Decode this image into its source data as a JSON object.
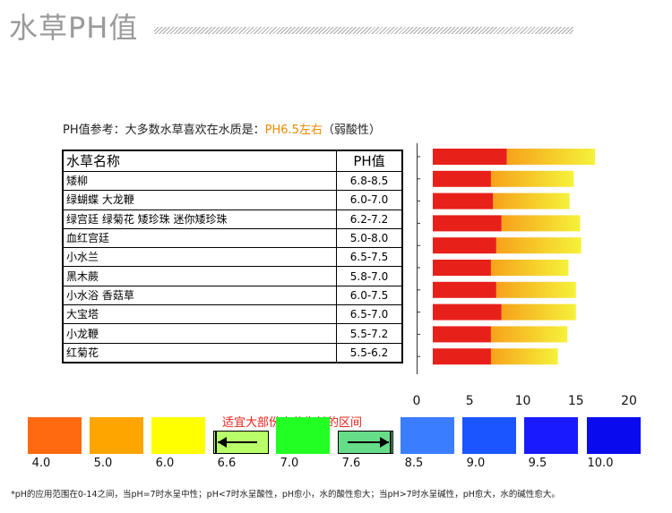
{
  "header": {
    "title": "水草PH值"
  },
  "intro": {
    "prefix": "PH值参考：大多数水草喜欢在水质是：",
    "highlight": "PH6.5左右",
    "suffix": "（弱酸性）"
  },
  "table": {
    "col_name": "水草名称",
    "col_ph": "PH值",
    "rows": [
      {
        "name": "矮柳",
        "ph": "6.8-8.5"
      },
      {
        "name": "绿蝴蝶 大龙鞭",
        "ph": "6.0-7.0"
      },
      {
        "name": "绿宫廷 绿菊花 矮珍珠 迷你矮珍珠",
        "ph": "6.2-7.2"
      },
      {
        "name": "血红宫廷",
        "ph": "5.0-8.0"
      },
      {
        "name": "小水兰",
        "ph": "6.5-7.5"
      },
      {
        "name": "黑木蕨",
        "ph": "5.8-7.0"
      },
      {
        "name": "小水浴 香菇草",
        "ph": "6.0-7.5"
      },
      {
        "name": "大宝塔",
        "ph": "6.5-7.0"
      },
      {
        "name": "小龙鞭",
        "ph": "5.5-7.2"
      },
      {
        "name": "红菊花",
        "ph": "5.5-6.2"
      }
    ]
  },
  "chart_data": {
    "type": "bar",
    "orientation": "horizontal",
    "stacked": true,
    "categories": [
      "矮柳",
      "绿蝴蝶 大龙鞭",
      "绿宫廷 绿菊花 矮珍珠 迷你矮珍珠",
      "血红宫廷",
      "小水兰",
      "黑木蕨",
      "小水浴 香菇草",
      "大宝塔",
      "小龙鞭",
      "红菊花"
    ],
    "series": [
      {
        "values": [
          8.5,
          7.0,
          7.2,
          8.0,
          7.5,
          7.0,
          7.5,
          8.0,
          7.0,
          7.0
        ]
      },
      {
        "values": [
          8.3,
          7.8,
          7.2,
          7.4,
          8.0,
          7.3,
          7.5,
          7.0,
          7.2,
          6.3
        ]
      }
    ],
    "xlim": [
      0,
      20
    ],
    "xticks": [
      "0",
      "5",
      "10",
      "15",
      "20"
    ],
    "colors": {
      "low": "#e8201a",
      "mid": "#f7a21b",
      "high": "#f5f23a"
    }
  },
  "ph_scale": {
    "range_title": "适宜大部份水草生长的区间",
    "cells": [
      {
        "color": "#ff6a10"
      },
      {
        "color": "#ffa500"
      },
      {
        "color": "#ffff00"
      },
      {
        "color": "#b8ff6a",
        "arrow": "left"
      },
      {
        "color": "#22ff22"
      },
      {
        "color": "#66dd88",
        "arrow": "right"
      },
      {
        "color": "#3a7dff"
      },
      {
        "color": "#1a55ff"
      },
      {
        "color": "#1a1aff"
      },
      {
        "color": "#0a0aee"
      }
    ],
    "labels": [
      "4.0",
      "5.0",
      "6.0",
      "6.6",
      "7.0",
      "7.6",
      "8.5",
      "9.0",
      "9.5",
      "10.0"
    ]
  },
  "footnote": "*pH的应用范围在0-14之间，当pH=7时水呈中性；pH<7时水呈酸性，pH愈小，水的酸性愈大；当pH>7时水呈碱性，pH愈大，水的碱性愈大。"
}
